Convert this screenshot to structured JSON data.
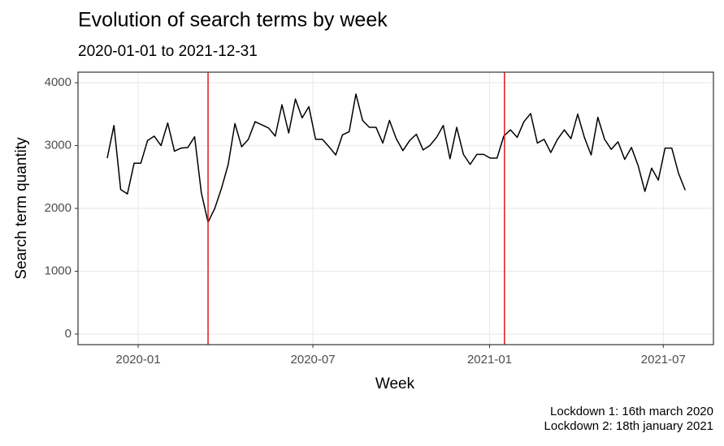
{
  "chart_data": {
    "type": "line",
    "title": "Evolution of search terms by week",
    "subtitle": "2020-01-01 to 2021-12-31",
    "xlabel": "Week",
    "ylabel": "Search term quantity",
    "caption": [
      "Lockdown 1: 16th march 2020",
      "Lockdown 2: 18th january 2021"
    ],
    "x": [
      -4.6,
      -3.6,
      -2.6,
      -1.6,
      -0.6,
      0.4,
      1.4,
      2.4,
      3.4,
      4.4,
      5.4,
      6.4,
      7.4,
      8.4,
      9.4,
      10.4,
      11.4,
      12.4,
      13.4,
      14.4,
      15.4,
      16.4,
      17.4,
      18.4,
      19.4,
      20.4,
      21.4,
      22.4,
      23.4,
      24.4,
      25.4,
      26.4,
      27.4,
      28.4,
      29.4,
      30.4,
      31.4,
      32.4,
      33.4,
      34.4,
      35.4,
      36.4,
      37.4,
      38.4,
      39.4,
      40.4,
      41.4,
      42.4,
      43.4,
      44.4,
      45.4,
      46.4,
      47.4,
      48.4,
      49.4,
      50.4,
      51.4,
      52.4,
      53.4,
      54.4,
      55.4,
      56.4,
      57.4,
      58.4,
      59.4,
      60.4,
      61.4,
      62.4,
      63.4,
      64.4,
      65.4,
      66.4,
      67.4,
      68.4,
      69.4,
      70.4,
      71.4,
      72.4,
      73.4,
      74.4,
      75.4,
      76.4,
      77.4,
      78.4,
      79.4,
      80.4,
      81.4
    ],
    "series": [
      {
        "color": "#000000",
        "values": [
          2800,
          3320,
          2300,
          2230,
          2720,
          2720,
          3080,
          3150,
          3000,
          3360,
          2910,
          2960,
          2970,
          3140,
          2250,
          1780,
          2000,
          2320,
          2700,
          3350,
          2980,
          3100,
          3380,
          3330,
          3280,
          3150,
          3650,
          3200,
          3740,
          3440,
          3620,
          3100,
          3100,
          2980,
          2850,
          3170,
          3220,
          3820,
          3400,
          3290,
          3290,
          3040,
          3400,
          3110,
          2920,
          3080,
          3180,
          2930,
          3000,
          3130,
          3320,
          2790,
          3290,
          2860,
          2700,
          2860,
          2860,
          2800,
          2800,
          3150,
          3250,
          3130,
          3380,
          3510,
          3040,
          3100,
          2890,
          3100,
          3250,
          3110,
          3500,
          3130,
          2850,
          3450,
          3100,
          2940,
          3060,
          2780,
          2970,
          2680,
          2270,
          2640,
          2450,
          2960,
          2960,
          2560,
          2290
        ]
      }
    ],
    "vlines": [
      10.4,
      54.5
    ],
    "vline_color": "#e31a1c",
    "xlim": [
      -8.95,
      85.6
    ],
    "xticks": [
      {
        "value": 0,
        "label": "2020-01"
      },
      {
        "value": 26,
        "label": "2020-07"
      },
      {
        "value": 52.29,
        "label": "2021-01"
      },
      {
        "value": 78.14,
        "label": "2021-07"
      }
    ],
    "ylim": [
      -168,
      4168
    ],
    "yticks": [
      0,
      1000,
      2000,
      3000,
      4000
    ],
    "grid": true
  }
}
